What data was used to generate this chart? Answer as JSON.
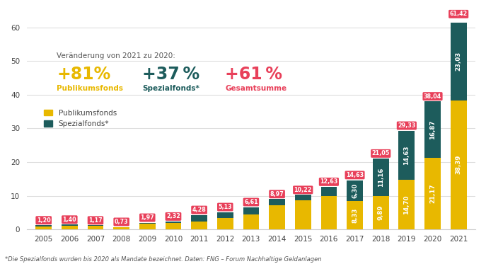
{
  "years": [
    "2005",
    "2006",
    "2007",
    "2008",
    "2009",
    "2010",
    "2011",
    "2012",
    "2013",
    "2014",
    "2015",
    "2016",
    "2017",
    "2018",
    "2019",
    "2020",
    "2021"
  ],
  "publikumsfonds": [
    0.85,
    1.1,
    1.0,
    0.6,
    1.6,
    1.9,
    2.28,
    3.3,
    4.5,
    7.2,
    8.7,
    10.0,
    8.33,
    9.89,
    14.7,
    21.17,
    38.39
  ],
  "spezialfonds": [
    0.35,
    0.3,
    0.17,
    0.13,
    0.37,
    0.42,
    2.0,
    1.83,
    2.11,
    1.77,
    1.52,
    2.63,
    6.3,
    11.16,
    14.63,
    16.87,
    23.03
  ],
  "totals": [
    "1,20",
    "1,40",
    "1,17",
    "0,73",
    "1,97",
    "2,32",
    "4,28",
    "5,13",
    "6,61",
    "8,97",
    "10,22",
    "12,63",
    "14,63",
    "21,05",
    "29,33",
    "38,04",
    "61,42"
  ],
  "totals_float": [
    1.2,
    1.4,
    1.17,
    0.73,
    1.97,
    2.32,
    4.28,
    5.13,
    6.61,
    8.97,
    10.22,
    12.63,
    14.63,
    21.05,
    29.33,
    38.04,
    61.42
  ],
  "pub_labels": [
    "",
    "",
    "",
    "",
    "",
    "",
    "",
    "",
    "",
    "",
    "",
    "",
    "8,33",
    "9,89",
    "14,70",
    "21,17",
    "38,39"
  ],
  "spe_labels": [
    "",
    "",
    "",
    "",
    "",
    "",
    "",
    "",
    "",
    "",
    "",
    "",
    "6,30",
    "11,16",
    "14,63",
    "16,87",
    "23,03"
  ],
  "color_pub": "#E8B800",
  "color_spe": "#1D5C5C",
  "color_label_bg": "#E8405A",
  "bg_color": "#ffffff",
  "annotation_text": "Veränderung von 2021 zu 2020:",
  "pct_pub": "+81%",
  "pct_spe": "+37 %",
  "pct_tot": "+61 %",
  "label_pub": "Publikumsfonds",
  "label_spe": "Spezialfonds*",
  "label_tot": "Gesamtsumme",
  "legend_pub": "Publikumsfonds",
  "legend_spe": "Spezialfonds*",
  "footer": "*Die Spezialfonds wurden bis 2020 als Mandate bezeichnet. Daten: FNG – Forum Nachhaltige Geldanlagen",
  "ylim": [
    0,
    65
  ],
  "yticks": [
    0,
    10,
    20,
    30,
    40,
    50,
    60
  ]
}
